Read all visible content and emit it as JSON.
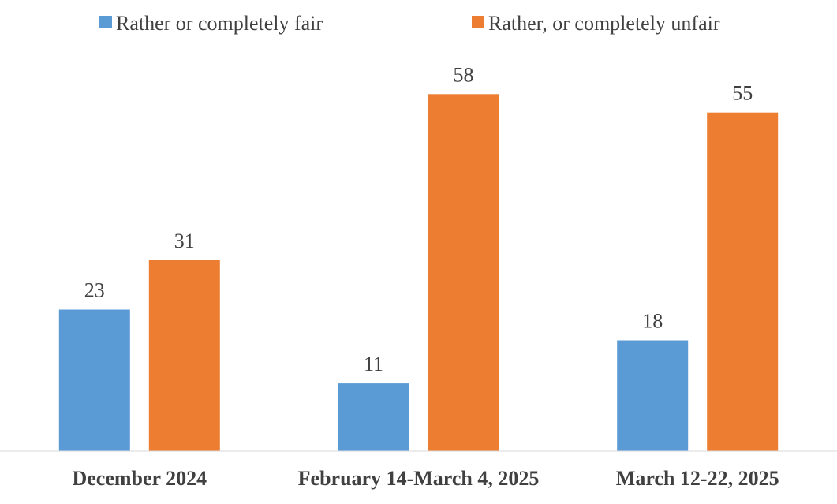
{
  "chart_data": {
    "type": "bar",
    "title": "",
    "xlabel": "",
    "ylabel": "",
    "categories": [
      "December 2024",
      "February 14-March 4, 2025",
      "March 12-22, 2025"
    ],
    "series": [
      {
        "name": "Rather or completely fair",
        "values": [
          23,
          11,
          18
        ],
        "color": "#5B9BD5"
      },
      {
        "name": "Rather, or completely unfair",
        "values": [
          31,
          58,
          55
        ],
        "color": "#ED7D31"
      }
    ],
    "ylim": [
      0,
      60
    ],
    "grid": false,
    "legend_position": "top-center",
    "axis_color": "#d9d9d9"
  }
}
